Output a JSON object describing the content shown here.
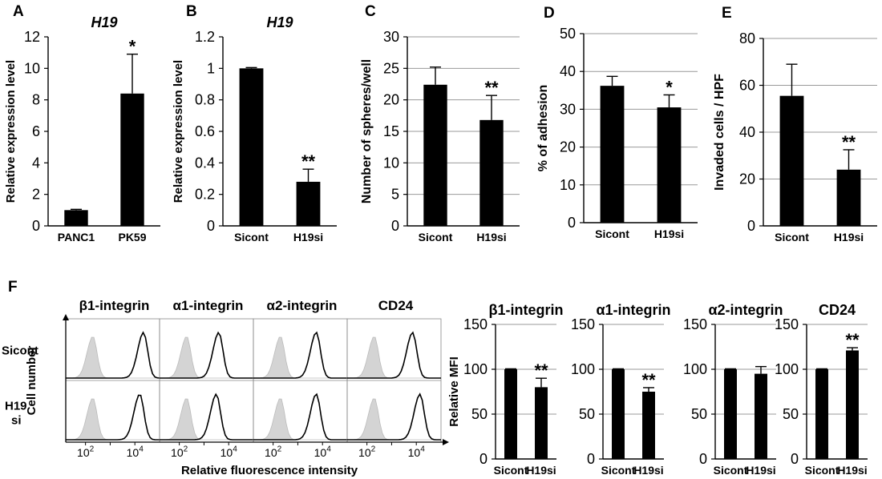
{
  "panel_letters": [
    "A",
    "B",
    "C",
    "D",
    "E",
    "F"
  ],
  "flow": {
    "row_labels": [
      "Sicont",
      "H19\nsi"
    ],
    "y_axis_label": "Cell number",
    "x_axis_label": "Relative fluorescence intensity",
    "tick_labels": [
      "10^2",
      "10^4"
    ],
    "panels": [
      {
        "title": "β1-integrin",
        "peak_sicont": 4.35,
        "peak_h19si": 4.2
      },
      {
        "title": "α1-integrin",
        "peak_sicont": 3.6,
        "peak_h19si": 3.5
      },
      {
        "title": "α2-integrin",
        "peak_sicont": 3.75,
        "peak_h19si": 3.75
      },
      {
        "title": "CD24",
        "peak_sicont": 3.85,
        "peak_h19si": 4.15
      }
    ],
    "control_peak": 2.3
  },
  "chart_data": [
    {
      "id": "A",
      "type": "bar",
      "title": "H19",
      "ylabel": "Relative expression level",
      "xlabel": "",
      "categories": [
        "PANC1",
        "PK59"
      ],
      "values": [
        1,
        8.4
      ],
      "errors": [
        0.05,
        2.5
      ],
      "ylim": [
        0,
        12
      ],
      "yticks": [
        "0",
        "2",
        "4",
        "6",
        "8",
        "10",
        "12"
      ],
      "sig": [
        "",
        "*"
      ],
      "grid": false
    },
    {
      "id": "B",
      "type": "bar",
      "title": "H19",
      "ylabel": "Relative expression level",
      "xlabel": "",
      "categories": [
        "Sicont",
        "H19si"
      ],
      "values": [
        1,
        0.28
      ],
      "errors": [
        0.005,
        0.08
      ],
      "ylim": [
        0,
        1.2
      ],
      "yticks": [
        "0",
        "0.2",
        "0.4",
        "0.6",
        "0.8",
        "1",
        "1.2"
      ],
      "sig": [
        "",
        "**"
      ],
      "grid": false
    },
    {
      "id": "C",
      "type": "bar",
      "title": "",
      "ylabel": "Number of spheres/well",
      "xlabel": "",
      "categories": [
        "Sicont",
        "H19si"
      ],
      "values": [
        22.4,
        16.8
      ],
      "errors": [
        2.8,
        3.9
      ],
      "ylim": [
        0,
        30
      ],
      "yticks": [
        "0",
        "5",
        "10",
        "15",
        "20",
        "25",
        "30"
      ],
      "sig": [
        "",
        "**"
      ],
      "grid": true
    },
    {
      "id": "D",
      "type": "bar",
      "title": "",
      "ylabel": "% of adhesion",
      "xlabel": "",
      "categories": [
        "Sicont",
        "H19si"
      ],
      "values": [
        36.2,
        30.5
      ],
      "errors": [
        2.5,
        3.3
      ],
      "ylim": [
        0,
        50
      ],
      "yticks": [
        "0",
        "10",
        "20",
        "30",
        "40",
        "50"
      ],
      "sig": [
        "",
        "*"
      ],
      "grid": true
    },
    {
      "id": "E",
      "type": "bar",
      "title": "",
      "ylabel": "Invaded cells / HPF",
      "xlabel": "",
      "categories": [
        "Sicont",
        "H19si"
      ],
      "values": [
        55.5,
        24
      ],
      "errors": [
        13.5,
        8.5
      ],
      "ylim": [
        0,
        80
      ],
      "yticks": [
        "0",
        "20",
        "40",
        "60",
        "80"
      ],
      "sig": [
        "",
        "**"
      ],
      "grid": true
    },
    {
      "id": "F1",
      "type": "bar",
      "title": "β1-integrin",
      "ylabel": "Relative MFI",
      "xlabel": "",
      "categories": [
        "Sicont",
        "H19si"
      ],
      "values": [
        100,
        80
      ],
      "errors": [
        0.5,
        10
      ],
      "ylim": [
        0,
        150
      ],
      "yticks": [
        "0",
        "50",
        "100",
        "150"
      ],
      "sig": [
        "",
        "**"
      ],
      "grid": true
    },
    {
      "id": "F2",
      "type": "bar",
      "title": "α1-integrin",
      "ylabel": "",
      "xlabel": "",
      "categories": [
        "Sicont",
        "H19si"
      ],
      "values": [
        100,
        75
      ],
      "errors": [
        0.5,
        4.5
      ],
      "ylim": [
        0,
        150
      ],
      "yticks": [
        "0",
        "50",
        "100",
        "150"
      ],
      "sig": [
        "",
        "**"
      ],
      "grid": true
    },
    {
      "id": "F3",
      "type": "bar",
      "title": "α2-integrin",
      "ylabel": "",
      "xlabel": "",
      "categories": [
        "Sicont",
        "H19si"
      ],
      "values": [
        100,
        95
      ],
      "errors": [
        0.5,
        8
      ],
      "ylim": [
        0,
        150
      ],
      "yticks": [
        "0",
        "50",
        "100",
        "150"
      ],
      "sig": [
        "",
        ""
      ],
      "grid": true
    },
    {
      "id": "F4",
      "type": "bar",
      "title": "CD24",
      "ylabel": "",
      "xlabel": "",
      "categories": [
        "Sicont",
        "H19si"
      ],
      "values": [
        100,
        121
      ],
      "errors": [
        0.5,
        3
      ],
      "ylim": [
        0,
        150
      ],
      "yticks": [
        "0",
        "50",
        "100",
        "150"
      ],
      "sig": [
        "",
        "**"
      ],
      "grid": true
    }
  ]
}
